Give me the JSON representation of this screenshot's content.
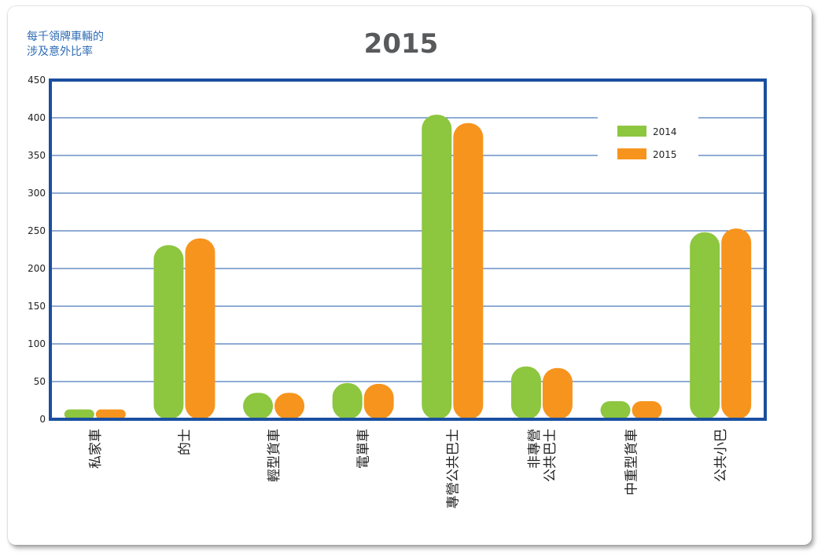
{
  "chart_data": {
    "type": "bar",
    "title": "2015",
    "ylabel": "每千領牌車輛的\n涉及意外比率",
    "xlabel": "",
    "ylim": [
      0,
      450
    ],
    "yticks": [
      0,
      50,
      100,
      150,
      200,
      250,
      300,
      350,
      400,
      450
    ],
    "categories": [
      [
        "私家車"
      ],
      [
        "的士"
      ],
      [
        "輕型貨車"
      ],
      [
        "電單車"
      ],
      [
        "專營公共巴士"
      ],
      [
        "非專營",
        "公共巴士"
      ],
      [
        "中重型貨車"
      ],
      [
        "公共小巴"
      ]
    ],
    "series": [
      {
        "name": "2014",
        "color": "#8dc63f",
        "values": [
          13,
          231,
          35,
          48,
          404,
          70,
          24,
          248
        ]
      },
      {
        "name": "2015",
        "color": "#f7941d",
        "values": [
          13,
          240,
          35,
          47,
          393,
          68,
          24,
          253
        ]
      }
    ],
    "grid": true,
    "gridColor": "#1f5aa8",
    "frameColor": "#1a4fa0",
    "legend_position": "top-right"
  }
}
